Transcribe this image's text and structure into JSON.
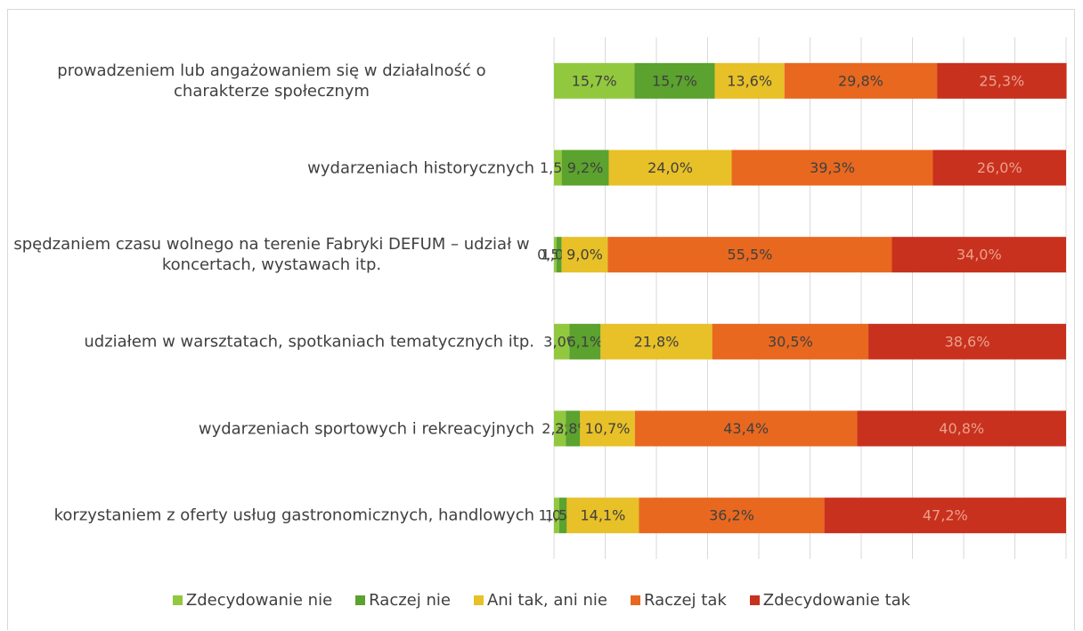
{
  "chart_data": {
    "type": "bar",
    "orientation": "horizontal",
    "stacked": true,
    "categories": [
      "prowadzeniem lub angażowaniem się w działalność o charakterze społecznym",
      "wydarzeniach historycznych",
      "spędzaniem czasu wolnego na terenie Fabryki DEFUM – udział w koncertach, wystawach itp.",
      "udziałem w warsztatach, spotkaniach tematycznych itp.",
      "wydarzeniach sportowych i rekreacyjnych",
      "korzystaniem z oferty usług gastronomicznych, handlowych"
    ],
    "series": [
      {
        "name": "Zdecydowanie nie",
        "color": "#92c83e",
        "values": [
          15.7,
          1.5,
          0.5,
          3.0,
          2.3,
          1.0
        ],
        "value_labels": [
          "15,7%",
          "1,5%",
          "0,5%",
          "3,0%",
          "2,3%",
          "1,0%"
        ]
      },
      {
        "name": "Raczej nie",
        "color": "#5ba22e",
        "values": [
          15.7,
          9.2,
          1.0,
          6.1,
          2.8,
          1.5
        ],
        "value_labels": [
          "15,7%",
          "9,2%",
          "1,0%",
          "6,1%",
          "2,8%",
          "1,5%"
        ]
      },
      {
        "name": "Ani tak, ani nie",
        "color": "#e8c027",
        "values": [
          13.6,
          24.0,
          9.0,
          21.8,
          10.7,
          14.1
        ],
        "value_labels": [
          "13,6%",
          "24,0%",
          "9,0%",
          "21,8%",
          "10,7%",
          "14,1%"
        ]
      },
      {
        "name": "Raczej tak",
        "color": "#e8681f",
        "values": [
          29.8,
          39.3,
          55.5,
          30.5,
          43.4,
          36.2
        ],
        "value_labels": [
          "29,8%",
          "39,3%",
          "55,5%",
          "30,5%",
          "43,4%",
          "36,2%"
        ]
      },
      {
        "name": "Zdecydowanie tak",
        "color": "#c8311e",
        "values": [
          25.3,
          26.0,
          34.0,
          38.6,
          40.8,
          47.2
        ],
        "value_labels": [
          "25,3%",
          "26,0%",
          "34,0%",
          "38,6%",
          "40,8%",
          "47,2%"
        ]
      }
    ],
    "xlim": [
      0,
      100
    ],
    "xticks": [
      0,
      10,
      20,
      30,
      40,
      50,
      60,
      70,
      80,
      90,
      100
    ],
    "grid": true,
    "legend": "bottom"
  }
}
